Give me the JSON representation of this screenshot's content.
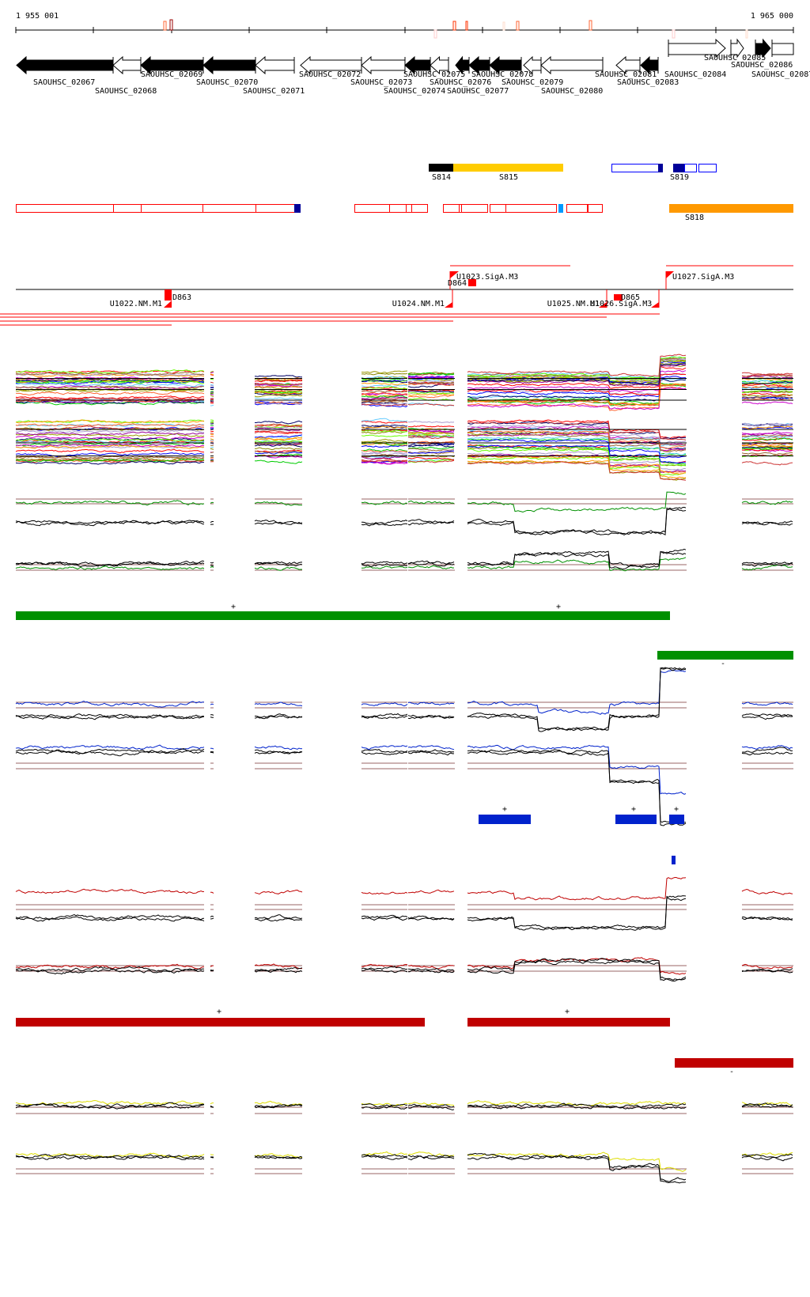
{
  "ruler": {
    "start_label": "1 955 001",
    "end_label": "1 965 000"
  },
  "genes": [
    {
      "id": "SAOUHSC_02067",
      "strand": "-",
      "fill": "black"
    },
    {
      "id": "SAOUHSC_02068",
      "strand": "-",
      "fill": "white"
    },
    {
      "id": "SAOUHSC_02069",
      "strand": "-",
      "fill": "black"
    },
    {
      "id": "SAOUHSC_02070",
      "strand": "-",
      "fill": "black"
    },
    {
      "id": "SAOUHSC_02071",
      "strand": "-",
      "fill": "white"
    },
    {
      "id": "SAOUHSC_02072",
      "strand": "-",
      "fill": "white"
    },
    {
      "id": "SAOUHSC_02073",
      "strand": "-",
      "fill": "white"
    },
    {
      "id": "SAOUHSC_02074",
      "strand": "-",
      "fill": "black"
    },
    {
      "id": "SAOUHSC_02075",
      "strand": "-",
      "fill": "white"
    },
    {
      "id": "SAOUHSC_02076",
      "strand": "-",
      "fill": "black"
    },
    {
      "id": "SAOUHSC_02077",
      "strand": "-",
      "fill": "black"
    },
    {
      "id": "SAOUHSC_02078",
      "strand": "-",
      "fill": "black"
    },
    {
      "id": "SAOUHSC_02079",
      "strand": "-",
      "fill": "white"
    },
    {
      "id": "SAOUHSC_02080",
      "strand": "-",
      "fill": "white"
    },
    {
      "id": "SAOUHSC_02081",
      "strand": "-",
      "fill": "white"
    },
    {
      "id": "SAOUHSC_02083",
      "strand": "-",
      "fill": "black"
    },
    {
      "id": "SAOUHSC_02084",
      "strand": "+",
      "fill": "white"
    },
    {
      "id": "SAOUHSC_02085",
      "strand": "+",
      "fill": "white"
    },
    {
      "id": "SAOUHSC_02086",
      "strand": "+",
      "fill": "black"
    },
    {
      "id": "SAOUHSC_02087",
      "strand": "+",
      "fill": "white"
    }
  ],
  "segments": {
    "S814": "S814",
    "S815": "S815",
    "S819": "S819",
    "S818": "S818"
  },
  "promoters": {
    "U1022": "U1022.NM.M1",
    "U1023": "U1023.SigA.M3",
    "U1024": "U1024.NM.M1",
    "U1025": "U1025.NM.M1",
    "U1026": "U1026.SigA.M3",
    "U1027": "U1027.SigA.M3",
    "D863": "D863",
    "D864": "D864",
    "D865": "D865"
  },
  "strand_marks": {
    "plus": "+",
    "minus": "-"
  },
  "colors": {
    "segment_black": "#000000",
    "segment_yellow": "#ffcc00",
    "segment_navy": "#000099",
    "segment_blue": "#0000ff",
    "segment_orange": "#ff9900",
    "utr_red": "#ff0000",
    "cyan": "#0099ff",
    "green": "#009000",
    "blue": "#0022cc",
    "darkred": "#c00000",
    "yellow": "#dddd00",
    "refline": "#996666",
    "palette": [
      "#ff0000",
      "#00cc00",
      "#0000ff",
      "#999900",
      "#cc00cc",
      "#ff6633",
      "#66ccff",
      "#aa99cc",
      "#996633",
      "#ff9900",
      "#000066",
      "#66ff00",
      "#cc3333",
      "#888800",
      "#990099"
    ]
  }
}
